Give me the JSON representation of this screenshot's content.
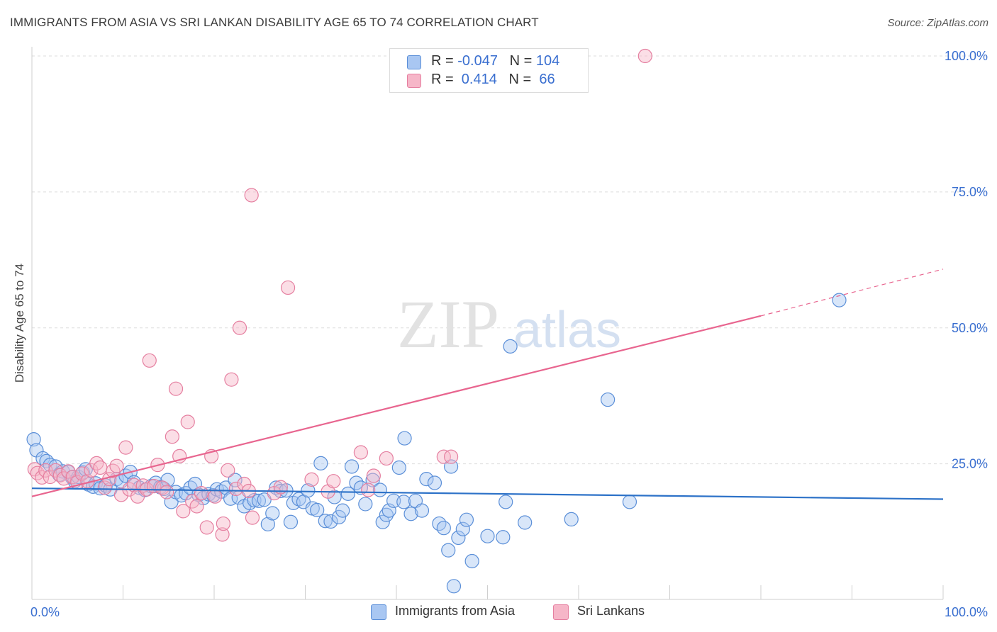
{
  "title": "IMMIGRANTS FROM ASIA VS SRI LANKAN DISABILITY AGE 65 TO 74 CORRELATION CHART",
  "source": "Source: ZipAtlas.com",
  "watermark": {
    "zip": "ZIP",
    "atlas": "atlas"
  },
  "colors": {
    "blue_fill": "#a9c7f2",
    "blue_stroke": "#5b8fd8",
    "blue_line": "#2d72c8",
    "pink_fill": "#f6b6c8",
    "pink_stroke": "#e57fa0",
    "pink_line": "#e8658f",
    "axis_text": "#3a6fd0",
    "grid": "#dddddd"
  },
  "legend": {
    "rows": [
      {
        "r_label": "R = ",
        "r_value": "-0.047",
        "n_label": "N = ",
        "n_value": "104",
        "color": "blue"
      },
      {
        "r_label": "R = ",
        "r_value": " 0.414",
        "n_label": "N = ",
        "n_value": " 66",
        "color": "pink"
      }
    ]
  },
  "bottom_legend": [
    {
      "label": "Immigrants from Asia",
      "color": "blue"
    },
    {
      "label": "Sri Lankans",
      "color": "pink"
    }
  ],
  "chart_data": {
    "type": "scatter",
    "xlabel": "",
    "ylabel": "Disability Age 65 to 74",
    "xlim": [
      0,
      100
    ],
    "ylim": [
      0,
      100
    ],
    "x_tick_labels": [
      "0.0%",
      "100.0%"
    ],
    "y_tick_labels": [
      "25.0%",
      "50.0%",
      "75.0%",
      "100.0%"
    ],
    "y_ticks": [
      25,
      50,
      75,
      100
    ],
    "grid": "horizontal dashed",
    "legend_position": "top-center",
    "series": [
      {
        "name": "Immigrants from Asia",
        "color": "blue",
        "trend": {
          "x": [
            0,
            100
          ],
          "y": [
            20.5,
            18.5
          ],
          "style": "solid"
        },
        "points": [
          [
            0.2,
            29.5
          ],
          [
            0.5,
            27.5
          ],
          [
            1.2,
            26.0
          ],
          [
            1.6,
            25.5
          ],
          [
            2.0,
            24.8
          ],
          [
            2.6,
            24.5
          ],
          [
            3.0,
            23.0
          ],
          [
            3.4,
            23.6
          ],
          [
            4.0,
            23.5
          ],
          [
            4.4,
            22.5
          ],
          [
            4.7,
            21.8
          ],
          [
            5.1,
            22.6
          ],
          [
            5.6,
            23.4
          ],
          [
            5.9,
            24.0
          ],
          [
            6.2,
            21.2
          ],
          [
            6.7,
            20.8
          ],
          [
            7.0,
            21.4
          ],
          [
            7.5,
            20.5
          ],
          [
            8.1,
            21.0
          ],
          [
            8.6,
            20.3
          ],
          [
            9.3,
            22.2
          ],
          [
            9.8,
            21.8
          ],
          [
            10.3,
            22.8
          ],
          [
            10.8,
            23.5
          ],
          [
            11.2,
            21.6
          ],
          [
            11.8,
            20.6
          ],
          [
            12.4,
            20.2
          ],
          [
            13.1,
            20.9
          ],
          [
            13.6,
            21.5
          ],
          [
            14.1,
            20.7
          ],
          [
            14.5,
            20.4
          ],
          [
            14.9,
            22.0
          ],
          [
            15.3,
            18.0
          ],
          [
            15.8,
            19.8
          ],
          [
            16.4,
            19.2
          ],
          [
            16.9,
            19.6
          ],
          [
            17.4,
            20.6
          ],
          [
            17.9,
            21.3
          ],
          [
            18.3,
            19.3
          ],
          [
            18.8,
            18.7
          ],
          [
            19.4,
            19.4
          ],
          [
            19.9,
            19.2
          ],
          [
            20.3,
            20.3
          ],
          [
            20.8,
            19.9
          ],
          [
            21.3,
            20.6
          ],
          [
            21.8,
            18.6
          ],
          [
            22.3,
            22.0
          ],
          [
            22.7,
            18.8
          ],
          [
            23.3,
            17.2
          ],
          [
            23.9,
            17.8
          ],
          [
            24.4,
            18.3
          ],
          [
            24.9,
            18.2
          ],
          [
            25.5,
            18.4
          ],
          [
            25.9,
            13.9
          ],
          [
            26.4,
            15.9
          ],
          [
            26.8,
            20.6
          ],
          [
            27.3,
            20.0
          ],
          [
            27.9,
            20.1
          ],
          [
            28.4,
            14.3
          ],
          [
            28.7,
            17.8
          ],
          [
            29.3,
            18.5
          ],
          [
            29.8,
            18.0
          ],
          [
            30.3,
            20.1
          ],
          [
            30.8,
            16.8
          ],
          [
            31.3,
            16.5
          ],
          [
            31.7,
            25.1
          ],
          [
            32.2,
            14.5
          ],
          [
            32.8,
            14.4
          ],
          [
            33.2,
            18.9
          ],
          [
            33.7,
            15.2
          ],
          [
            34.1,
            16.4
          ],
          [
            34.7,
            19.5
          ],
          [
            35.1,
            24.5
          ],
          [
            35.6,
            21.5
          ],
          [
            36.1,
            20.6
          ],
          [
            36.6,
            17.6
          ],
          [
            37.4,
            22.0
          ],
          [
            38.2,
            20.2
          ],
          [
            38.5,
            14.3
          ],
          [
            38.9,
            15.6
          ],
          [
            39.2,
            16.4
          ],
          [
            39.7,
            18.2
          ],
          [
            40.3,
            24.3
          ],
          [
            40.8,
            18.0
          ],
          [
            40.9,
            29.7
          ],
          [
            41.6,
            15.8
          ],
          [
            42.1,
            18.2
          ],
          [
            42.8,
            16.4
          ],
          [
            43.3,
            22.2
          ],
          [
            44.2,
            21.5
          ],
          [
            44.7,
            14.0
          ],
          [
            45.2,
            13.2
          ],
          [
            45.7,
            9.1
          ],
          [
            46.0,
            24.5
          ],
          [
            46.3,
            2.5
          ],
          [
            46.8,
            11.4
          ],
          [
            47.3,
            13.0
          ],
          [
            47.7,
            14.7
          ],
          [
            48.3,
            7.1
          ],
          [
            50.0,
            11.7
          ],
          [
            51.7,
            11.5
          ],
          [
            52.0,
            18.0
          ],
          [
            52.5,
            46.6
          ],
          [
            54.1,
            14.2
          ],
          [
            59.2,
            14.8
          ],
          [
            63.2,
            36.8
          ],
          [
            65.6,
            18.0
          ],
          [
            88.6,
            55.1
          ]
        ]
      },
      {
        "name": "Sri Lankans",
        "color": "pink",
        "trend": {
          "x": [
            0,
            80
          ],
          "y": [
            19.0,
            52.2
          ],
          "style": "solid",
          "extension": {
            "x": [
              80,
              100
            ],
            "y": [
              52.2,
              60.8
            ],
            "style": "dashed"
          }
        },
        "points": [
          [
            0.3,
            24.0
          ],
          [
            0.6,
            23.3
          ],
          [
            1.1,
            22.5
          ],
          [
            1.5,
            23.8
          ],
          [
            2.0,
            22.6
          ],
          [
            2.6,
            23.8
          ],
          [
            3.1,
            22.9
          ],
          [
            3.5,
            22.3
          ],
          [
            4.0,
            23.6
          ],
          [
            4.5,
            22.6
          ],
          [
            5.0,
            21.6
          ],
          [
            5.5,
            23.2
          ],
          [
            6.1,
            21.8
          ],
          [
            6.5,
            23.8
          ],
          [
            7.1,
            25.1
          ],
          [
            7.5,
            24.3
          ],
          [
            8.0,
            20.6
          ],
          [
            8.5,
            22.2
          ],
          [
            8.9,
            23.7
          ],
          [
            9.3,
            24.6
          ],
          [
            9.8,
            19.3
          ],
          [
            10.3,
            28.0
          ],
          [
            10.7,
            20.3
          ],
          [
            11.2,
            21.1
          ],
          [
            11.6,
            19.0
          ],
          [
            12.2,
            21.0
          ],
          [
            12.6,
            20.3
          ],
          [
            12.9,
            44.0
          ],
          [
            13.4,
            20.9
          ],
          [
            13.8,
            24.8
          ],
          [
            14.3,
            20.6
          ],
          [
            14.8,
            19.8
          ],
          [
            15.4,
            30.0
          ],
          [
            15.8,
            38.8
          ],
          [
            16.2,
            26.4
          ],
          [
            16.6,
            16.3
          ],
          [
            17.1,
            32.7
          ],
          [
            17.6,
            18.1
          ],
          [
            18.1,
            17.2
          ],
          [
            18.6,
            19.6
          ],
          [
            19.2,
            13.3
          ],
          [
            19.7,
            26.4
          ],
          [
            20.1,
            19.0
          ],
          [
            20.9,
            12.0
          ],
          [
            21.0,
            14.0
          ],
          [
            21.5,
            23.8
          ],
          [
            21.9,
            40.5
          ],
          [
            22.4,
            20.4
          ],
          [
            22.8,
            50.0
          ],
          [
            23.3,
            21.3
          ],
          [
            23.8,
            20.0
          ],
          [
            24.2,
            15.1
          ],
          [
            24.1,
            74.4
          ],
          [
            26.6,
            19.6
          ],
          [
            27.3,
            20.7
          ],
          [
            28.1,
            57.4
          ],
          [
            30.7,
            22.1
          ],
          [
            32.5,
            19.9
          ],
          [
            33.1,
            21.8
          ],
          [
            36.1,
            27.1
          ],
          [
            36.9,
            20.2
          ],
          [
            37.5,
            22.8
          ],
          [
            38.9,
            26.0
          ],
          [
            45.2,
            26.3
          ],
          [
            46.0,
            26.3
          ],
          [
            67.3,
            100.0
          ]
        ]
      }
    ]
  }
}
